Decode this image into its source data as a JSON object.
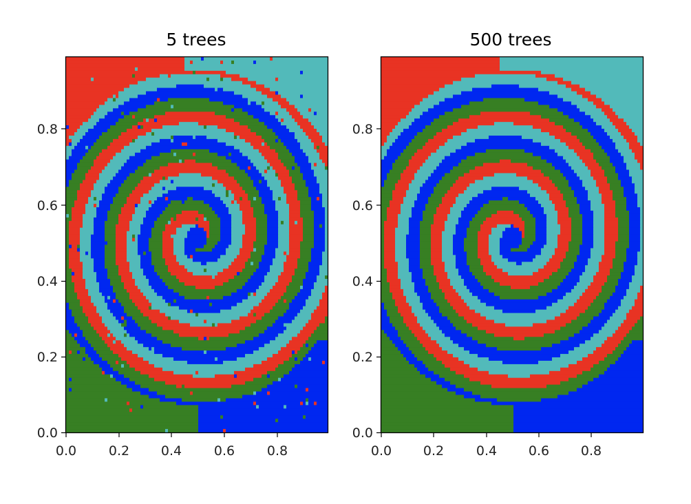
{
  "colors": {
    "red": "#e83323",
    "green": "#377f23",
    "blue": "#0027f0",
    "teal": "#52baba"
  },
  "chart_data": [
    {
      "type": "heatmap",
      "title": "5 trees",
      "xlabel": "",
      "ylabel": "",
      "xlim": [
        0.0,
        1.0
      ],
      "ylim": [
        0.0,
        1.0
      ],
      "xticks": [
        "0.0",
        "0.2",
        "0.4",
        "0.6",
        "0.8"
      ],
      "yticks": [
        "0.0",
        "0.2",
        "0.4",
        "0.6",
        "0.8"
      ],
      "grid": false,
      "class_order": [
        "red",
        "green",
        "blue",
        "teal"
      ],
      "noise": 0.022
    },
    {
      "type": "heatmap",
      "title": "500 trees",
      "xlabel": "",
      "ylabel": "",
      "xlim": [
        0.0,
        1.0
      ],
      "ylim": [
        0.0,
        1.0
      ],
      "xticks": [
        "0.0",
        "0.2",
        "0.4",
        "0.6",
        "0.8"
      ],
      "yticks": [
        "0.0",
        "0.2",
        "0.4",
        "0.6",
        "0.8"
      ],
      "grid": false,
      "class_order": [
        "red",
        "green",
        "blue",
        "teal"
      ],
      "noise": 0.0
    }
  ]
}
